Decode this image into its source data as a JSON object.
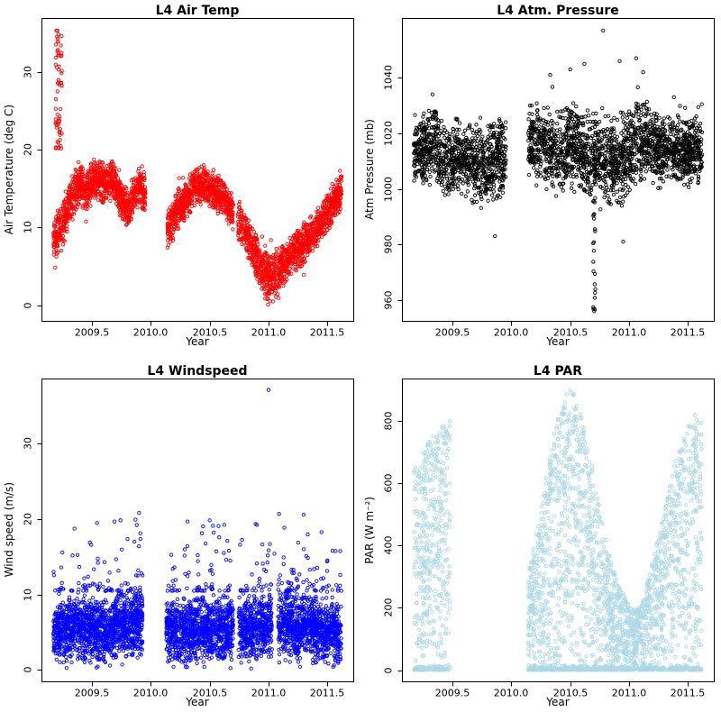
{
  "figure": {
    "background": "#FFFFFF"
  },
  "chart_data": [
    {
      "type": "scatter",
      "title": "L4 Air Temp",
      "xlabel": "Year",
      "ylabel": "Air Temperature (deg C)",
      "color": "#FF0000",
      "marker": "open-circle",
      "xlim": [
        2009.07,
        2011.72
      ],
      "ylim": [
        -2.0,
        36.9
      ],
      "xticks": [
        2009.5,
        2010.0,
        2010.5,
        2011.0,
        2011.5
      ],
      "xtick_labels": [
        "2009.5",
        "2010.0",
        "2010.5",
        "2011.0",
        "2011.5"
      ],
      "yticks": [
        0,
        10,
        20,
        30
      ],
      "ytick_labels": [
        "0",
        "10",
        "20",
        "30"
      ],
      "n_points": 3000,
      "x_step": 0.006,
      "segments": [
        [
          2009.17,
          2009.955
        ],
        [
          2010.14,
          2010.7
        ],
        [
          2010.74,
          2011.62
        ]
      ],
      "mean_keypoints": [
        [
          2009.17,
          8.5
        ],
        [
          2009.24,
          10
        ],
        [
          2009.31,
          13
        ],
        [
          2009.38,
          15.5
        ],
        [
          2009.45,
          14.5
        ],
        [
          2009.52,
          16.5
        ],
        [
          2009.6,
          15.5
        ],
        [
          2009.68,
          16
        ],
        [
          2009.74,
          14
        ],
        [
          2009.8,
          12
        ],
        [
          2009.86,
          14.5
        ],
        [
          2009.92,
          15.5
        ],
        [
          2009.955,
          13.5
        ],
        [
          2010.14,
          9.5
        ],
        [
          2010.22,
          12
        ],
        [
          2010.3,
          13.5
        ],
        [
          2010.38,
          15.5
        ],
        [
          2010.46,
          15.5
        ],
        [
          2010.54,
          14.5
        ],
        [
          2010.62,
          13.5
        ],
        [
          2010.7,
          12
        ],
        [
          2010.78,
          10
        ],
        [
          2010.86,
          7.5
        ],
        [
          2010.94,
          5
        ],
        [
          2011.0,
          3.5
        ],
        [
          2011.06,
          4
        ],
        [
          2011.12,
          5
        ],
        [
          2011.2,
          6.5
        ],
        [
          2011.28,
          7.5
        ],
        [
          2011.36,
          9
        ],
        [
          2011.44,
          10.5
        ],
        [
          2011.52,
          12.5
        ],
        [
          2011.58,
          14
        ],
        [
          2011.62,
          14.5
        ]
      ],
      "spread_keypoints": [
        [
          2009.17,
          3.5
        ],
        [
          2009.4,
          3
        ],
        [
          2009.7,
          2.8
        ],
        [
          2009.955,
          3
        ],
        [
          2010.14,
          3
        ],
        [
          2010.5,
          2.5
        ],
        [
          2010.8,
          3
        ],
        [
          2011.0,
          3.8
        ],
        [
          2011.2,
          2.8
        ],
        [
          2011.5,
          2.8
        ],
        [
          2011.62,
          2.5
        ]
      ],
      "clamp_min": -0.6,
      "spikes": [
        {
          "x0": 2009.19,
          "x1": 2009.245,
          "y0": 20,
          "y1": 35.5,
          "n": 60
        }
      ],
      "outliers": [
        [
          2009.205,
          35.3
        ],
        [
          2009.215,
          34.8
        ],
        [
          2009.21,
          33.9
        ]
      ]
    },
    {
      "type": "scatter",
      "title": "L4 Atm. Pressure",
      "xlabel": "Year",
      "ylabel": "Atm Pressure (mb)",
      "color": "#000000",
      "marker": "open-circle",
      "xlim": [
        2009.07,
        2011.72
      ],
      "ylim": [
        952.5,
        1061.5
      ],
      "xticks": [
        2009.5,
        2010.0,
        2010.5,
        2011.0,
        2011.5
      ],
      "xtick_labels": [
        "2009.5",
        "2010.0",
        "2010.5",
        "2011.0",
        "2011.5"
      ],
      "yticks": [
        960,
        980,
        1000,
        1020,
        1040
      ],
      "ytick_labels": [
        "960",
        "980",
        "1000",
        "1020",
        "1040"
      ],
      "n_points": 2800,
      "x_step": 0.006,
      "segments": [
        [
          2009.17,
          2009.955
        ],
        [
          2010.14,
          2011.62
        ]
      ],
      "mean_keypoints": [
        [
          2009.24,
          1013
        ],
        [
          2009.34,
          1016
        ],
        [
          2009.44,
          1010
        ],
        [
          2009.54,
          1012
        ],
        [
          2009.64,
          1010
        ],
        [
          2009.74,
          1008
        ],
        [
          2009.84,
          1010
        ],
        [
          2009.955,
          1012
        ],
        [
          2010.14,
          1019
        ],
        [
          2010.26,
          1017
        ],
        [
          2010.38,
          1013
        ],
        [
          2010.5,
          1016
        ],
        [
          2010.62,
          1012
        ],
        [
          2010.74,
          1011
        ],
        [
          2010.86,
          1009
        ],
        [
          2010.96,
          1011
        ],
        [
          2011.06,
          1015
        ],
        [
          2011.16,
          1017
        ],
        [
          2011.26,
          1015
        ],
        [
          2011.38,
          1013
        ],
        [
          2011.5,
          1014
        ],
        [
          2011.62,
          1013
        ]
      ],
      "spread_keypoints": [
        [
          2009.24,
          14
        ],
        [
          2009.6,
          15
        ],
        [
          2009.955,
          16
        ],
        [
          2010.14,
          14
        ],
        [
          2010.5,
          17
        ],
        [
          2010.9,
          19
        ],
        [
          2011.2,
          15
        ],
        [
          2011.62,
          13
        ]
      ],
      "spikes": [
        {
          "x0": 2010.695,
          "x1": 2010.72,
          "y0": 954,
          "y1": 992,
          "n": 20
        }
      ],
      "outliers": [
        [
          2010.78,
          1057
        ],
        [
          2010.5,
          1043
        ],
        [
          2010.62,
          1045
        ],
        [
          2010.92,
          1046
        ],
        [
          2011.06,
          1047
        ],
        [
          2011.12,
          1042
        ],
        [
          2010.33,
          1041
        ],
        [
          2009.33,
          1034
        ],
        [
          2009.86,
          983
        ],
        [
          2010.95,
          981
        ]
      ]
    },
    {
      "type": "scatter",
      "title": "L4 Windspeed",
      "xlabel": "Year",
      "ylabel": "Wind speed (m/s)",
      "color": "#0000FF",
      "marker": "open-circle",
      "xlim": [
        2009.07,
        2011.72
      ],
      "ylim": [
        -1.5,
        38.6
      ],
      "xticks": [
        2009.5,
        2010.0,
        2010.5,
        2011.0,
        2011.5
      ],
      "xtick_labels": [
        "2009.5",
        "2010.0",
        "2010.5",
        "2011.0",
        "2011.5"
      ],
      "yticks": [
        0,
        10,
        20,
        30
      ],
      "ytick_labels": [
        "0",
        "10",
        "20",
        "30"
      ],
      "n_points": 3800,
      "x_step": 0.005,
      "segments": [
        [
          2009.17,
          2009.93
        ],
        [
          2010.13,
          2010.7
        ],
        [
          2010.745,
          2011.03
        ],
        [
          2011.08,
          2011.62
        ]
      ],
      "mean_keypoints": [
        [
          2009.17,
          5
        ],
        [
          2009.4,
          5.5
        ],
        [
          2009.6,
          5
        ],
        [
          2009.8,
          6
        ],
        [
          2009.93,
          6.5
        ],
        [
          2010.13,
          5
        ],
        [
          2010.4,
          5.5
        ],
        [
          2010.7,
          5.5
        ],
        [
          2011.0,
          6
        ],
        [
          2011.3,
          5.5
        ],
        [
          2011.6,
          5
        ],
        [
          2011.62,
          4.5
        ]
      ],
      "spread_keypoints": [
        [
          2009.17,
          4.5
        ],
        [
          2009.93,
          5
        ],
        [
          2010.5,
          4.5
        ],
        [
          2011.0,
          5
        ],
        [
          2011.62,
          4.5
        ]
      ],
      "clamp_min": 0.15,
      "tail": {
        "n": 240,
        "base": 10.5,
        "extra": 10.5,
        "power": 3.2
      },
      "outliers": [
        [
          2011.0,
          37.1
        ],
        [
          2009.9,
          20.8
        ],
        [
          2009.88,
          19.2
        ],
        [
          2009.91,
          18.1
        ],
        [
          2009.86,
          17.0
        ],
        [
          2010.62,
          15.5
        ],
        [
          2010.64,
          14.6
        ],
        [
          2011.3,
          16.0
        ],
        [
          2011.32,
          15.1
        ],
        [
          2009.55,
          14.2
        ],
        [
          2010.2,
          13.6
        ],
        [
          2011.5,
          14.5
        ],
        [
          2011.05,
          15.4
        ],
        [
          2010.9,
          14.1
        ]
      ]
    },
    {
      "type": "scatter",
      "title": "L4 PAR",
      "xlabel": "Year",
      "ylabel": "PAR (W m⁻²)",
      "color": "#ADD8E6",
      "marker": "open-circle",
      "xlim": [
        2009.07,
        2011.72
      ],
      "ylim": [
        -36,
        936
      ],
      "xticks": [
        2009.5,
        2010.0,
        2010.5,
        2011.0,
        2011.5
      ],
      "xtick_labels": [
        "2009.5",
        "2010.0",
        "2010.5",
        "2011.0",
        "2011.5"
      ],
      "yticks": [
        0,
        200,
        400,
        600,
        800
      ],
      "ytick_labels": [
        "0",
        "200",
        "400",
        "600",
        "800"
      ],
      "n_points": 3200,
      "x_step": 0.01,
      "x_jitter": 0.3,
      "segments": [
        [
          2009.17,
          2009.48
        ],
        [
          2010.14,
          2011.62
        ]
      ],
      "envelope_keypoints": [
        [
          2009.17,
          640
        ],
        [
          2009.27,
          720
        ],
        [
          2009.37,
          770
        ],
        [
          2009.48,
          800
        ],
        [
          2010.14,
          300
        ],
        [
          2010.22,
          470
        ],
        [
          2010.3,
          640
        ],
        [
          2010.38,
          790
        ],
        [
          2010.46,
          880
        ],
        [
          2010.52,
          900
        ],
        [
          2010.6,
          820
        ],
        [
          2010.68,
          670
        ],
        [
          2010.76,
          500
        ],
        [
          2010.84,
          360
        ],
        [
          2010.92,
          265
        ],
        [
          2011.0,
          210
        ],
        [
          2011.06,
          195
        ],
        [
          2011.12,
          240
        ],
        [
          2011.2,
          350
        ],
        [
          2011.3,
          520
        ],
        [
          2011.4,
          680
        ],
        [
          2011.5,
          790
        ],
        [
          2011.57,
          820
        ],
        [
          2011.62,
          800
        ]
      ],
      "power": 0.8,
      "zero_frac": 0.22,
      "outliers": [
        [
          2010.5,
          898
        ],
        [
          2010.47,
          885
        ],
        [
          2011.56,
          818
        ]
      ]
    }
  ]
}
